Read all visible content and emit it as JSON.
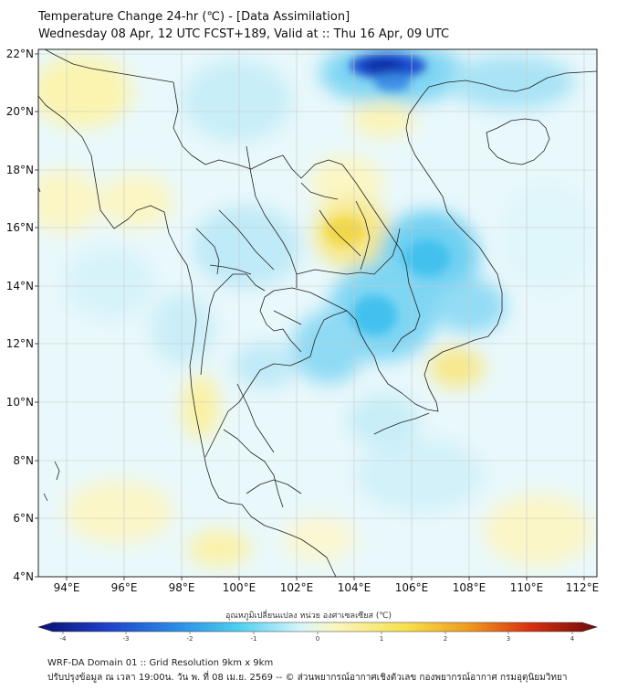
{
  "header": {
    "title_line1": "Temperature Change 24-hr (℃) - [Data Assimilation]",
    "title_line2": "Wednesday 08 Apr, 12 UTC FCST+189, Valid at :: Thu 16 Apr, 09 UTC"
  },
  "map": {
    "lon_range": [
      93,
      112.5
    ],
    "lat_range": [
      4,
      22.2
    ],
    "lon_ticks": [
      "94°E",
      "96°E",
      "98°E",
      "100°E",
      "102°E",
      "104°E",
      "106°E",
      "108°E",
      "110°E",
      "112°E"
    ],
    "lat_ticks": [
      "22°N",
      "20°N",
      "18°N",
      "16°N",
      "14°N",
      "12°N",
      "10°N",
      "8°N",
      "6°N",
      "4°N"
    ],
    "grid": true
  },
  "colorbar": {
    "label": "อุณหภูมิเปลี่ยนแปลง หน่วย องศาเซลเซียส (℃)",
    "min": -4,
    "max": 4,
    "ticks": [
      "-4",
      "-3",
      "-2",
      "-1",
      "0",
      "1",
      "2",
      "3",
      "4"
    ],
    "colors": [
      "#0a1070",
      "#1f3fc8",
      "#2b8ee6",
      "#4fd0f0",
      "#d8f6fb",
      "#fbf6c0",
      "#f6e04a",
      "#f09a20",
      "#d83010",
      "#6e0a0a"
    ]
  },
  "footer": {
    "line1": "WRF-DA Domain 01 :: Grid Resolution 9km x 9km",
    "line2": "ปรับปรุงข้อมูล ณ เวลา 19:00น. วัน พ. ที่ 08 เม.ย. 2569 -- © ส่วนพยากรณ์อากาศเชิงตัวเลข กองพยากรณ์อากาศ กรมอุตุนิยมวิทยา"
  }
}
